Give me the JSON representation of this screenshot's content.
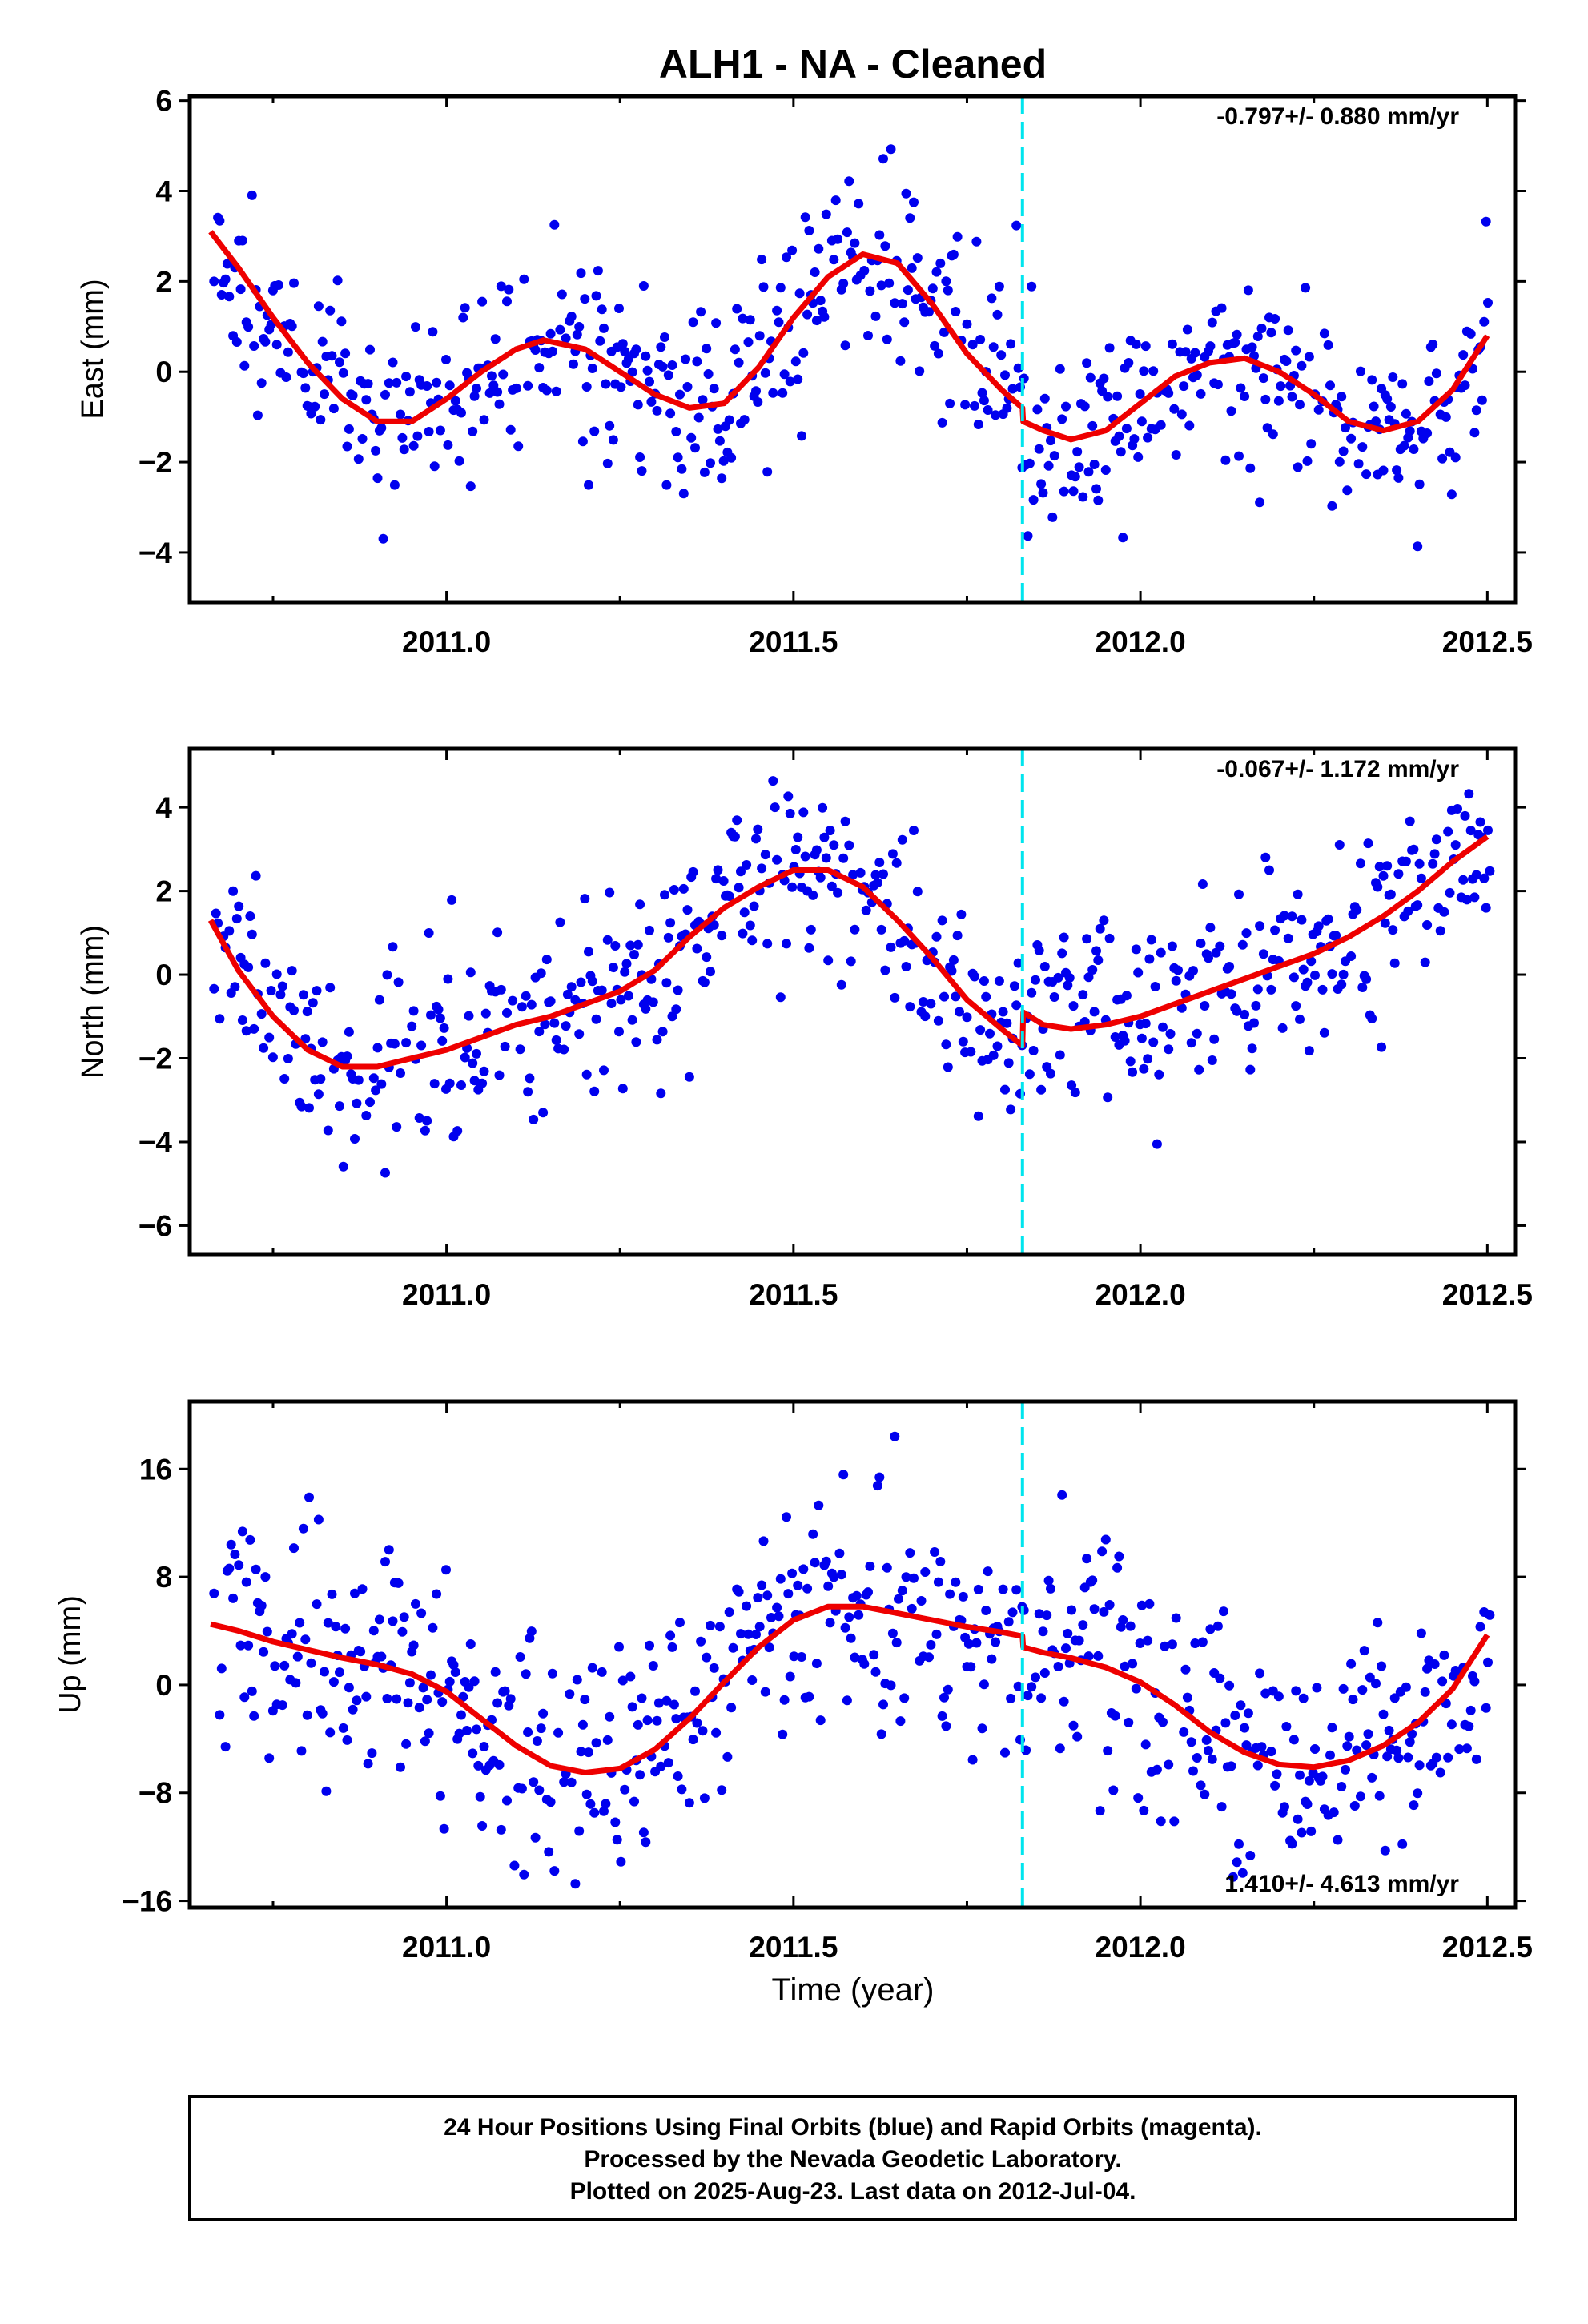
{
  "title": "ALH1  - NA - Cleaned",
  "x_axis_label": "Time (year)",
  "footer": [
    "24 Hour Positions Using Final Orbits (blue) and Rapid Orbits (magenta).",
    "Processed by the Nevada Geodetic Laboratory.",
    "Plotted on 2025-Aug-23. Last data on 2012-Jul-04."
  ],
  "colors": {
    "points": "#0000ee",
    "model": "#ee0000",
    "event_line": "#00e5ee",
    "frame": "#000000"
  },
  "chart_data": [
    {
      "type": "scatter",
      "name": "East",
      "ylabel": "East (mm)",
      "rate_text": "-0.797+/- 0.880 mm/yr",
      "xlim": [
        2010.63,
        2012.54
      ],
      "ylim": [
        -5.1,
        6.1
      ],
      "xticks": [
        "2011.0",
        "2011.5",
        "2012.0",
        "2012.5"
      ],
      "yticks": [
        "−4",
        "−2",
        "0",
        "2",
        "4",
        "6"
      ],
      "event_x": 2011.83,
      "model": {
        "x": [
          2010.66,
          2010.7,
          2010.75,
          2010.8,
          2010.85,
          2010.9,
          2010.95,
          2011.0,
          2011.05,
          2011.1,
          2011.14,
          2011.2,
          2011.25,
          2011.3,
          2011.35,
          2011.4,
          2011.45,
          2011.5,
          2011.55,
          2011.6,
          2011.65,
          2011.7,
          2011.75,
          2011.8,
          2011.83,
          2011.831,
          2011.86,
          2011.9,
          2011.95,
          2012.0,
          2012.05,
          2012.1,
          2012.15,
          2012.2,
          2012.25,
          2012.3,
          2012.35,
          2012.4,
          2012.45,
          2012.5
        ],
        "y": [
          3.1,
          2.3,
          1.2,
          0.2,
          -0.6,
          -1.1,
          -1.1,
          -0.6,
          0.0,
          0.5,
          0.7,
          0.5,
          0.0,
          -0.5,
          -0.8,
          -0.7,
          0.1,
          1.2,
          2.1,
          2.6,
          2.4,
          1.5,
          0.4,
          -0.4,
          -0.8,
          -1.1,
          -1.3,
          -1.5,
          -1.3,
          -0.7,
          -0.1,
          0.2,
          0.3,
          0.0,
          -0.5,
          -1.1,
          -1.3,
          -1.1,
          -0.4,
          0.8
        ]
      },
      "points_seed": 11,
      "point_noise_mm": 1.05
    },
    {
      "type": "scatter",
      "name": "North",
      "ylabel": "North (mm)",
      "rate_text": "-0.067+/- 1.172 mm/yr",
      "xlim": [
        2010.63,
        2012.54
      ],
      "ylim": [
        -6.7,
        5.4
      ],
      "xticks": [
        "2011.0",
        "2011.5",
        "2012.0",
        "2012.5"
      ],
      "yticks": [
        "−6",
        "−4",
        "−2",
        "0",
        "2",
        "4"
      ],
      "event_x": 2011.83,
      "model": {
        "x": [
          2010.66,
          2010.7,
          2010.75,
          2010.8,
          2010.85,
          2010.9,
          2010.95,
          2011.0,
          2011.05,
          2011.1,
          2011.15,
          2011.2,
          2011.25,
          2011.3,
          2011.35,
          2011.4,
          2011.45,
          2011.5,
          2011.55,
          2011.6,
          2011.65,
          2011.7,
          2011.75,
          2011.8,
          2011.83,
          2011.831,
          2011.86,
          2011.9,
          2011.95,
          2012.0,
          2012.05,
          2012.1,
          2012.15,
          2012.2,
          2012.25,
          2012.3,
          2012.35,
          2012.4,
          2012.45,
          2012.5
        ],
        "y": [
          1.3,
          0.1,
          -1.0,
          -1.8,
          -2.2,
          -2.2,
          -2.0,
          -1.8,
          -1.5,
          -1.2,
          -1.0,
          -0.7,
          -0.4,
          0.1,
          0.9,
          1.6,
          2.1,
          2.5,
          2.5,
          2.1,
          1.3,
          0.4,
          -0.6,
          -1.3,
          -1.7,
          -0.9,
          -1.2,
          -1.3,
          -1.2,
          -1.0,
          -0.7,
          -0.4,
          -0.1,
          0.2,
          0.5,
          0.9,
          1.4,
          2.0,
          2.7,
          3.3
        ]
      },
      "points_seed": 23,
      "point_noise_mm": 1.15
    },
    {
      "type": "scatter",
      "name": "Up",
      "ylabel": "Up (mm)",
      "rate_text": "1.410+/- 4.613 mm/yr",
      "xlim": [
        2010.63,
        2012.54
      ],
      "ylim": [
        -16.5,
        21.0
      ],
      "xticks": [
        "2011.0",
        "2011.5",
        "2012.0",
        "2012.5"
      ],
      "yticks": [
        "−16",
        "−8",
        "0",
        "8",
        "16"
      ],
      "event_x": 2011.83,
      "model": {
        "x": [
          2010.66,
          2010.7,
          2010.75,
          2010.8,
          2010.85,
          2010.9,
          2010.95,
          2011.0,
          2011.05,
          2011.1,
          2011.15,
          2011.2,
          2011.25,
          2011.3,
          2011.35,
          2011.4,
          2011.45,
          2011.5,
          2011.55,
          2011.6,
          2011.65,
          2011.7,
          2011.75,
          2011.8,
          2011.83,
          2011.831,
          2011.86,
          2011.9,
          2011.95,
          2012.0,
          2012.05,
          2012.1,
          2012.15,
          2012.2,
          2012.25,
          2012.3,
          2012.35,
          2012.4,
          2012.45,
          2012.5
        ],
        "y": [
          4.5,
          4.0,
          3.2,
          2.6,
          2.0,
          1.5,
          0.8,
          -0.5,
          -2.5,
          -4.5,
          -6.0,
          -6.5,
          -6.2,
          -4.8,
          -2.5,
          0.2,
          2.8,
          4.8,
          5.8,
          5.8,
          5.3,
          4.8,
          4.3,
          3.9,
          3.6,
          2.8,
          2.4,
          2.0,
          1.3,
          0.2,
          -1.5,
          -3.5,
          -5.0,
          -5.9,
          -6.1,
          -5.6,
          -4.5,
          -2.8,
          -0.3,
          3.7
        ]
      },
      "points_seed": 37,
      "point_noise_mm": 4.3
    }
  ]
}
